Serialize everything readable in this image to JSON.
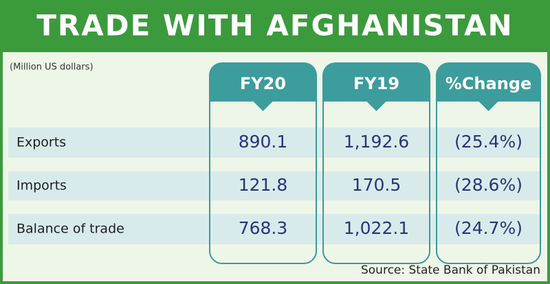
{
  "header": {
    "title": "TRADE WITH AFGHANISTAN"
  },
  "table": {
    "unit": "(Million US dollars)",
    "columns": [
      "FY20",
      "FY19",
      "%Change"
    ],
    "rows": [
      [
        "Exports",
        "890.1",
        "1,192.6",
        "(25.4%)"
      ],
      [
        "Imports",
        "121.8",
        "170.5",
        "(28.6%)"
      ],
      [
        "Balance of trade",
        "768.3",
        "1,022.1",
        "(24.7%)"
      ]
    ]
  },
  "footer": {
    "source": "Source: State Bank of Pakistan"
  }
}
